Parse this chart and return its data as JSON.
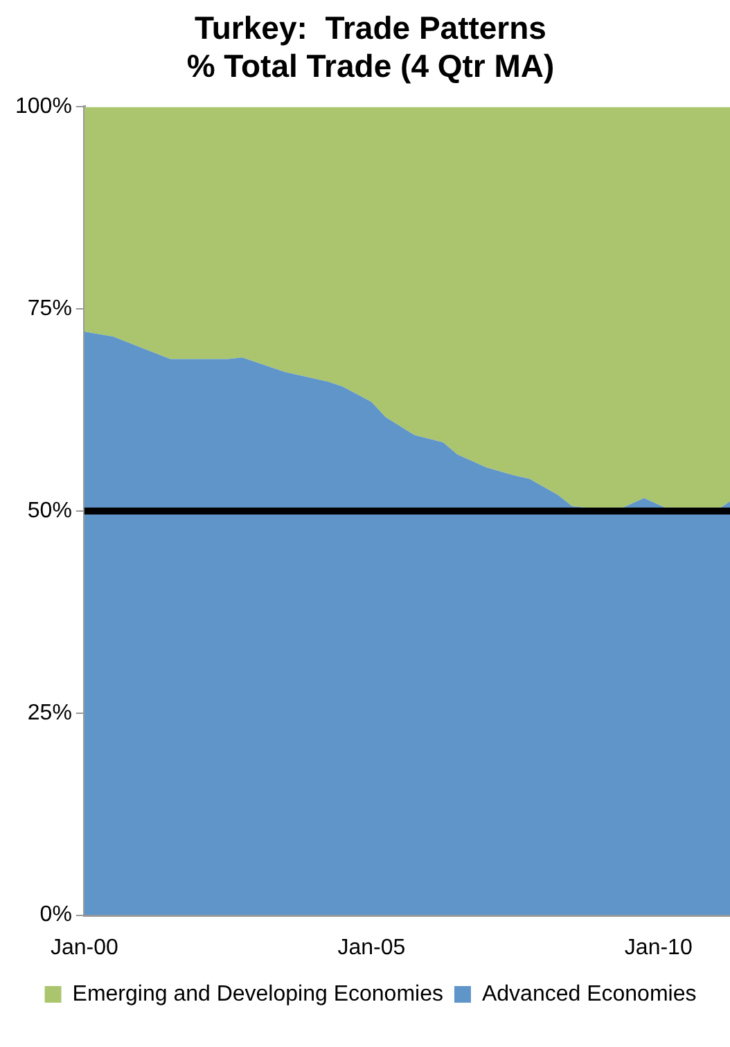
{
  "chart_data": {
    "type": "area",
    "title": "Turkey:  Trade Patterns\n% Total Trade (4 Qtr MA)",
    "stacked": true,
    "x": [
      "2000-01",
      "2000-07",
      "2001-07",
      "2002-07",
      "2002-10",
      "2003-07",
      "2004-04",
      "2004-07",
      "2005-01",
      "2005-04",
      "2005-10",
      "2006-04",
      "2006-07",
      "2007-01",
      "2007-07",
      "2007-10",
      "2008-04",
      "2008-07",
      "2009-04",
      "2009-10",
      "2010-04",
      "2011-01",
      "2011-04"
    ],
    "series": [
      {
        "name": "Advanced Economies",
        "color": "#5f95c8",
        "values": [
          72.2,
          71.6,
          68.8,
          68.8,
          69.0,
          67.2,
          66.0,
          65.4,
          63.5,
          61.6,
          59.4,
          58.5,
          57.0,
          55.4,
          54.4,
          54.0,
          52.0,
          50.6,
          50,
          51.6,
          50,
          50,
          51.2
        ]
      },
      {
        "name": "Emerging and Developing Economies",
        "color": "#abc56f",
        "values": [
          27.8,
          28.4,
          31.2,
          31.2,
          31.0,
          32.8,
          34.0,
          34.6,
          36.5,
          38.4,
          40.6,
          41.5,
          43.0,
          44.6,
          45.6,
          46.0,
          48.0,
          49.4,
          50,
          48.4,
          50,
          50,
          48.8
        ]
      }
    ],
    "xlim": [
      "2000-01",
      "2011-04"
    ],
    "xticks": [
      {
        "value": "2000-01",
        "label": "Jan-00"
      },
      {
        "value": "2005-01",
        "label": "Jan-05"
      },
      {
        "value": "2010-01",
        "label": "Jan-10"
      }
    ],
    "ylim": [
      0,
      100
    ],
    "yticks": [
      {
        "value": 0,
        "label": "0%"
      },
      {
        "value": 25,
        "label": "25%"
      },
      {
        "value": 50,
        "label": "50%"
      },
      {
        "value": 75,
        "label": "75%"
      },
      {
        "value": 100,
        "label": "100%"
      }
    ],
    "ref_lines": [
      {
        "axis": "y",
        "value": 50,
        "color": "#000000"
      }
    ],
    "grid": false,
    "legend": "bottom"
  }
}
